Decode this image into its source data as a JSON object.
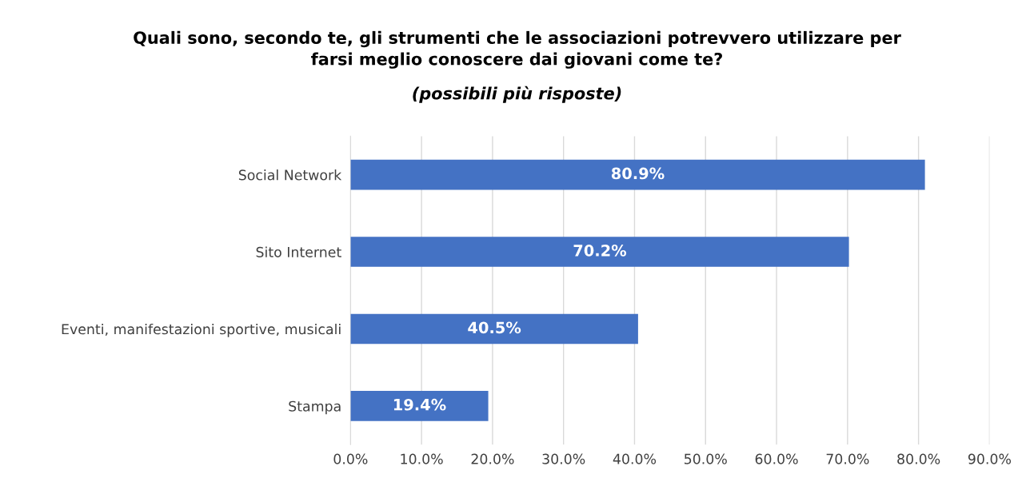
{
  "chart_data": {
    "type": "bar",
    "orientation": "horizontal",
    "title": "Quali sono, secondo te, gli strumenti che le associazioni potrevvero utilizzare per\nfarsi meglio conoscere dai giovani come te?",
    "subtitle": "(possibili più risposte)",
    "categories": [
      "Social Network",
      "Sito Internet",
      "Eventi, manifestazioni sportive, musicali",
      "Stampa"
    ],
    "values": [
      80.9,
      70.2,
      40.5,
      19.4
    ],
    "value_labels": [
      "80.9%",
      "70.2%",
      "40.5%",
      "19.4%"
    ],
    "color": "#4472c4",
    "xlim": [
      0,
      90
    ],
    "xticks": [
      {
        "value": 0,
        "label": "0.0%"
      },
      {
        "value": 10,
        "label": "10.0%"
      },
      {
        "value": 20,
        "label": "20.0%"
      },
      {
        "value": 30,
        "label": "30.0%"
      },
      {
        "value": 40,
        "label": "40.0%"
      },
      {
        "value": 50,
        "label": "50.0%"
      },
      {
        "value": 60,
        "label": "60.0%"
      },
      {
        "value": 70,
        "label": "70.0%"
      },
      {
        "value": 80,
        "label": "80.0%"
      },
      {
        "value": 90,
        "label": "90.0%"
      }
    ],
    "grid": "x",
    "legend": false
  }
}
